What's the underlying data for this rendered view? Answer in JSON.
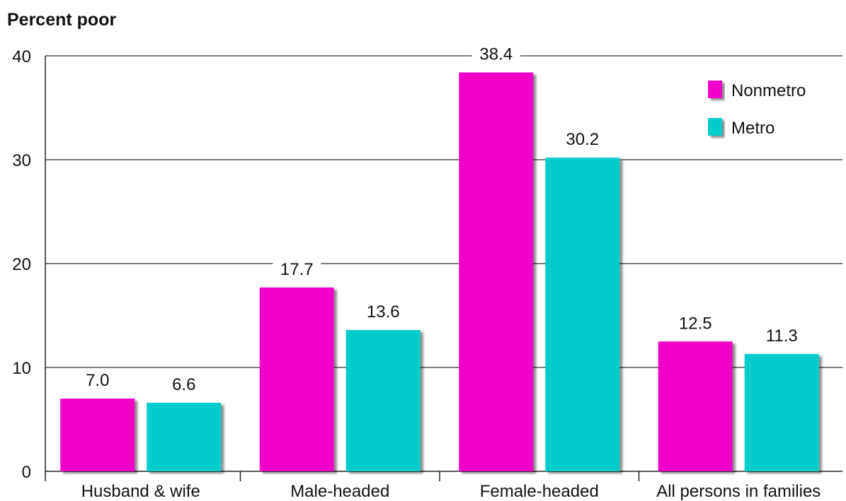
{
  "chart_data": {
    "type": "bar",
    "ylabel": "Percent poor",
    "categories": [
      "Husband & wife",
      "Male-headed",
      "Female-headed",
      "All persons in families"
    ],
    "series": [
      {
        "name": "Nonmetro",
        "color": "#f000c8",
        "values": [
          7.0,
          17.7,
          38.4,
          12.5
        ]
      },
      {
        "name": "Metro",
        "color": "#00cccc",
        "values": [
          6.6,
          13.6,
          30.2,
          11.3
        ]
      }
    ],
    "data_labels": [
      [
        "7.0",
        "17.7",
        "38.4",
        "12.5"
      ],
      [
        "6.6",
        "13.6",
        "30.2",
        "11.3"
      ]
    ],
    "ylim": [
      0,
      40
    ],
    "yticks": [
      0,
      10,
      20,
      30,
      40
    ],
    "grid": true,
    "legend_position": "top-right"
  }
}
